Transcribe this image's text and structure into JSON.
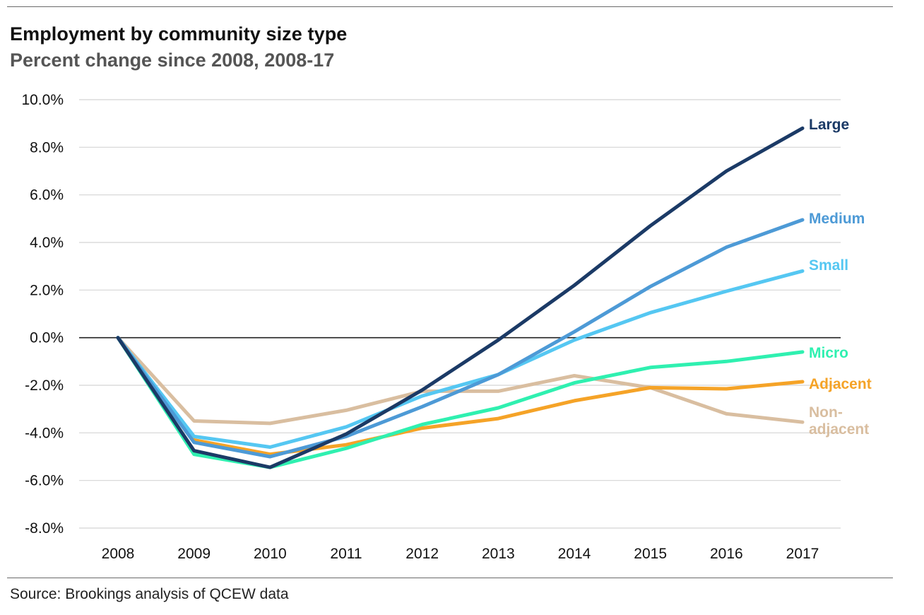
{
  "chart_data": {
    "type": "line",
    "title": "Employment by community size type",
    "subtitle": "Percent change since 2008, 2008-17",
    "xlabel": "",
    "ylabel": "",
    "source": "Source: Brookings analysis of QCEW data",
    "x": [
      "2008",
      "2009",
      "2010",
      "2011",
      "2012",
      "2013",
      "2014",
      "2015",
      "2016",
      "2017"
    ],
    "ylim": [
      -8,
      10
    ],
    "yticks": [
      "10.0%",
      "8.0%",
      "6.0%",
      "4.0%",
      "2.0%",
      "0.0%",
      "-2.0%",
      "-4.0%",
      "-6.0%",
      "-8.0%"
    ],
    "ytick_values": [
      10,
      8,
      6,
      4,
      2,
      0,
      -2,
      -4,
      -6,
      -8
    ],
    "grid": true,
    "legend": "direct labels at line ends",
    "series": [
      {
        "name": "Non-adjacent",
        "label_lines": [
          "Non-",
          "adjacent"
        ],
        "color": "#d9bea0",
        "values": [
          0,
          -3.5,
          -3.6,
          -3.05,
          -2.25,
          -2.25,
          -1.6,
          -2.1,
          -3.2,
          -3.55
        ]
      },
      {
        "name": "Adjacent",
        "label_lines": [
          "Adjacent"
        ],
        "color": "#f5a327",
        "values": [
          0,
          -4.3,
          -4.9,
          -4.5,
          -3.8,
          -3.4,
          -2.65,
          -2.1,
          -2.15,
          -1.85
        ]
      },
      {
        "name": "Micro",
        "label_lines": [
          "Micro"
        ],
        "color": "#2ff0b0",
        "values": [
          0,
          -4.9,
          -5.45,
          -4.65,
          -3.65,
          -2.95,
          -1.9,
          -1.25,
          -1.0,
          -0.6
        ]
      },
      {
        "name": "Small",
        "label_lines": [
          "Small"
        ],
        "color": "#55c7f2",
        "values": [
          0,
          -4.15,
          -4.6,
          -3.75,
          -2.45,
          -1.55,
          -0.1,
          1.05,
          1.95,
          2.8
        ]
      },
      {
        "name": "Medium",
        "label_lines": [
          "Medium"
        ],
        "color": "#4d9ad6",
        "values": [
          0,
          -4.4,
          -5.0,
          -4.15,
          -2.9,
          -1.55,
          0.25,
          2.15,
          3.8,
          4.95
        ]
      },
      {
        "name": "Large",
        "label_lines": [
          "Large"
        ],
        "color": "#1b3a66",
        "values": [
          0,
          -4.75,
          -5.45,
          -4.05,
          -2.2,
          -0.1,
          2.2,
          4.7,
          7.0,
          8.8
        ]
      }
    ],
    "zero_line_color": "#222222",
    "grid_color": "#d4d4d4"
  }
}
